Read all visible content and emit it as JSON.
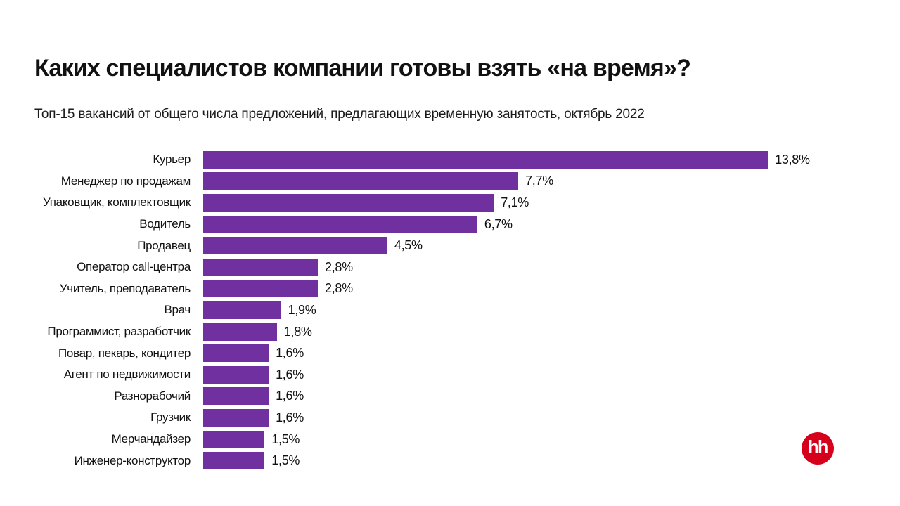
{
  "header": {
    "title": "Каких специалистов компании готовы взять «на время»?",
    "subtitle": "Топ-15 вакансий от общего числа предложений, предлагающих временную занятость, октябрь 2022"
  },
  "chart_data": {
    "type": "bar",
    "orientation": "horizontal",
    "title": "Каких специалистов компании готовы взять «на время»?",
    "subtitle": "Топ-15 вакансий от общего числа предложений, предлагающих временную занятость, октябрь 2022",
    "categories": [
      "Курьер",
      "Менеджер по продажам",
      "Упаковщик, комплектовщик",
      "Водитель",
      "Продавец",
      "Оператор call-центра",
      "Учитель, преподаватель",
      "Врач",
      "Программист, разработчик",
      "Повар, пекарь, кондитер",
      "Агент по недвижимости",
      "Разнорабочий",
      "Грузчик",
      "Мерчандайзер",
      "Инженер-конструктор"
    ],
    "values": [
      13.8,
      7.7,
      7.1,
      6.7,
      4.5,
      2.8,
      2.8,
      1.9,
      1.8,
      1.6,
      1.6,
      1.6,
      1.6,
      1.5,
      1.5
    ],
    "value_labels": [
      "13,8%",
      "7,7%",
      "7,1%",
      "6,7%",
      "4,5%",
      "2,8%",
      "2,8%",
      "1,9%",
      "1,8%",
      "1,6%",
      "1,6%",
      "1,6%",
      "1,6%",
      "1,5%",
      "1,5%"
    ],
    "unit": "%",
    "xlim": [
      0,
      14
    ],
    "grid": false,
    "legend": false,
    "value_label_position": "end-of-bar",
    "bar_color": "#7030a0"
  },
  "logo": {
    "text": "hh",
    "bg_color": "#d6001c",
    "text_color": "#ffffff"
  }
}
